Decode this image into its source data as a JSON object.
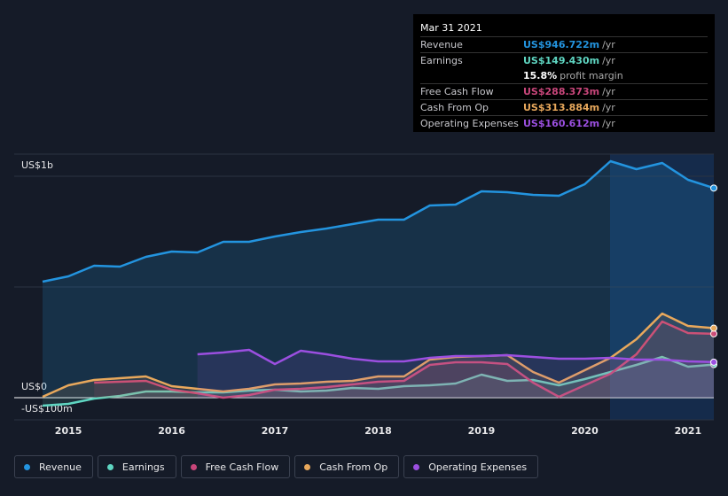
{
  "chart_data": {
    "type": "line",
    "x": [
      2014.75,
      2015.0,
      2015.25,
      2015.5,
      2015.75,
      2016.0,
      2016.25,
      2016.5,
      2016.75,
      2017.0,
      2017.25,
      2017.5,
      2017.75,
      2018.0,
      2018.25,
      2018.5,
      2018.75,
      2019.0,
      2019.25,
      2019.5,
      2019.75,
      2020.0,
      2020.25,
      2020.5,
      2020.75,
      2021.0,
      2021.25
    ],
    "xlim": [
      2014.75,
      2021.25
    ],
    "xticks": [
      2015,
      2016,
      2017,
      2018,
      2019,
      2020,
      2021
    ],
    "ylim": [
      -100,
      1100
    ],
    "yticks": [
      {
        "value": -100,
        "label": "-US$100m"
      },
      {
        "value": 0,
        "label": "US$0"
      },
      {
        "value": 1000,
        "label": "US$1b"
      }
    ],
    "series": [
      {
        "name": "Revenue",
        "color": "#2394df",
        "values": [
          524,
          548,
          596,
          592,
          636,
          660,
          656,
          704,
          704,
          728,
          748,
          764,
          784,
          804,
          804,
          868,
          872,
          932,
          928,
          916,
          912,
          964,
          1068,
          1032,
          1060,
          984,
          946.722
        ]
      },
      {
        "name": "Earnings",
        "color": "#5fd6c2",
        "values": [
          -36,
          -28,
          -4,
          8,
          28,
          28,
          24,
          24,
          32,
          36,
          28,
          32,
          44,
          40,
          52,
          56,
          64,
          104,
          76,
          80,
          56,
          84,
          116,
          148,
          184,
          140,
          149.43
        ]
      },
      {
        "name": "Free Cash Flow",
        "color": "#c8467a",
        "values": [
          null,
          null,
          68,
          72,
          76,
          36,
          20,
          0,
          12,
          36,
          40,
          48,
          60,
          72,
          76,
          148,
          160,
          160,
          152,
          68,
          4,
          56,
          108,
          196,
          344,
          292,
          288.373
        ]
      },
      {
        "name": "Cash From Op",
        "color": "#e8a85c",
        "values": [
          4,
          56,
          80,
          88,
          96,
          52,
          40,
          28,
          40,
          60,
          64,
          72,
          76,
          96,
          96,
          172,
          184,
          188,
          192,
          116,
          68,
          124,
          180,
          264,
          380,
          324,
          313.884
        ]
      },
      {
        "name": "Operating Expenses",
        "color": "#9b4fe0",
        "values": [
          null,
          null,
          null,
          null,
          null,
          null,
          196,
          204,
          216,
          152,
          212,
          196,
          176,
          164,
          164,
          180,
          188,
          188,
          192,
          184,
          176,
          176,
          180,
          172,
          172,
          164,
          160.612
        ]
      }
    ]
  },
  "tooltip": {
    "date": "Mar 31 2021",
    "rows": [
      {
        "label": "Revenue",
        "value": "US$946.722m",
        "suffix": "/yr",
        "color": "#2394df"
      },
      {
        "label": "Earnings",
        "value": "US$149.430m",
        "suffix": "/yr",
        "color": "#5fd6c2"
      },
      {
        "label": "",
        "value": "15.8%",
        "suffix": "profit margin",
        "color": "#ffffff"
      },
      {
        "label": "Free Cash Flow",
        "value": "US$288.373m",
        "suffix": "/yr",
        "color": "#c8467a"
      },
      {
        "label": "Cash From Op",
        "value": "US$313.884m",
        "suffix": "/yr",
        "color": "#e8a85c"
      },
      {
        "label": "Operating Expenses",
        "value": "US$160.612m",
        "suffix": "/yr",
        "color": "#9b4fe0"
      }
    ]
  }
}
